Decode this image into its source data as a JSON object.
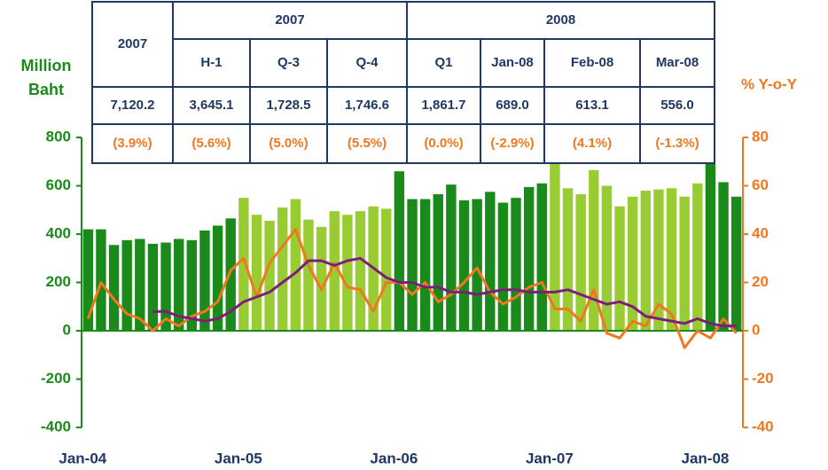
{
  "chart_data": {
    "type": "bar",
    "y_label": "Million Baht",
    "y2_label": "% Y-o-Y",
    "categories": [
      "Jan-04",
      null,
      null,
      null,
      null,
      null,
      null,
      null,
      null,
      null,
      null,
      null,
      "Jan-05",
      null,
      null,
      null,
      null,
      null,
      null,
      null,
      null,
      null,
      null,
      null,
      "Jan-06",
      null,
      null,
      null,
      null,
      null,
      null,
      null,
      null,
      null,
      null,
      null,
      "Jan-07",
      null,
      null,
      null,
      null,
      null,
      null,
      null,
      null,
      null,
      null,
      null,
      "Jan-08",
      null,
      null
    ],
    "series": [
      {
        "type": "bar",
        "values": [
          420,
          420,
          355,
          375,
          380,
          360,
          365,
          380,
          375,
          415,
          435,
          465,
          550,
          480,
          455,
          510,
          545,
          460,
          430,
          495,
          480,
          495,
          515,
          505,
          660,
          545,
          545,
          565,
          605,
          540,
          545,
          575,
          530,
          550,
          595,
          610,
          710,
          590,
          565,
          665,
          600,
          515,
          555,
          580,
          585,
          590,
          555,
          610,
          690,
          615,
          555
        ],
        "colors": [
          "#1a8a1a",
          "#1a8a1a",
          "#1a8a1a",
          "#1a8a1a",
          "#1a8a1a",
          "#1a8a1a",
          "#1a8a1a",
          "#1a8a1a",
          "#1a8a1a",
          "#1a8a1a",
          "#1a8a1a",
          "#1a8a1a",
          "#99cc33",
          "#99cc33",
          "#99cc33",
          "#99cc33",
          "#99cc33",
          "#99cc33",
          "#99cc33",
          "#99cc33",
          "#99cc33",
          "#99cc33",
          "#99cc33",
          "#99cc33",
          "#1a8a1a",
          "#1a8a1a",
          "#1a8a1a",
          "#1a8a1a",
          "#1a8a1a",
          "#1a8a1a",
          "#1a8a1a",
          "#1a8a1a",
          "#1a8a1a",
          "#1a8a1a",
          "#1a8a1a",
          "#1a8a1a",
          "#99cc33",
          "#99cc33",
          "#99cc33",
          "#99cc33",
          "#99cc33",
          "#99cc33",
          "#99cc33",
          "#99cc33",
          "#99cc33",
          "#99cc33",
          "#99cc33",
          "#99cc33",
          "#1a8a1a",
          "#1a8a1a",
          "#1a8a1a"
        ]
      },
      {
        "type": "line",
        "axis": "y2",
        "color": "#f07820",
        "values": [
          5,
          20,
          13,
          7,
          5,
          0,
          5,
          2,
          6,
          8,
          12,
          25,
          30,
          14,
          28,
          35,
          42,
          27,
          17,
          28,
          18,
          17,
          8,
          20,
          20,
          15,
          20,
          12,
          15,
          20,
          26,
          16,
          11,
          14,
          18,
          20,
          9,
          9,
          4,
          17,
          -1,
          -3,
          4,
          2,
          11,
          7,
          -7,
          0,
          -3,
          5,
          -1
        ]
      },
      {
        "type": "line",
        "axis": "y2",
        "color": "#7b1f7b",
        "values": [
          null,
          null,
          null,
          null,
          null,
          8,
          8,
          6,
          5,
          4,
          5,
          8,
          12,
          14,
          16,
          20,
          24,
          29,
          29,
          27,
          29,
          30,
          26,
          22,
          20,
          20,
          18,
          18,
          16,
          16,
          15,
          16,
          17,
          17,
          16,
          16,
          16,
          17,
          15,
          13,
          11,
          12,
          10,
          6,
          5,
          4,
          3,
          5,
          3,
          2,
          2
        ]
      }
    ],
    "ylim": [
      -400,
      800
    ],
    "yticks": [
      -400,
      -200,
      0,
      200,
      400,
      600,
      800
    ],
    "y2lim": [
      -40,
      80
    ],
    "y2ticks": [
      -40,
      -20,
      0,
      20,
      40,
      60,
      80
    ]
  },
  "table": {
    "corner": "2007",
    "groups": [
      {
        "label": "2007",
        "span": 3
      },
      {
        "label": "2008",
        "span": 4
      }
    ],
    "columns": [
      "H-1",
      "Q-3",
      "Q-4",
      "Q1",
      "Jan-08",
      "Feb-08",
      "Mar-08"
    ],
    "values": [
      "7,120.2",
      "3,645.1",
      "1,728.5",
      "1,746.6",
      "1,861.7",
      "689.0",
      "613.1",
      "556.0"
    ],
    "changes": [
      "(3.9%)",
      "(5.6%)",
      "(5.0%)",
      "(5.5%)",
      "(0.0%)",
      "(-2.9%)",
      "(4.1%)",
      "(-1.3%)"
    ]
  }
}
